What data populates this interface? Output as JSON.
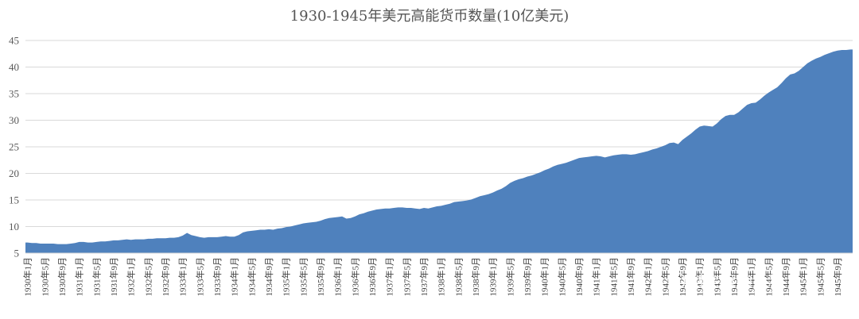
{
  "chart_data": {
    "type": "area",
    "title": "1930-1945年美元高能货币数量(10亿美元)",
    "xlabel": "",
    "ylabel": "",
    "ylim": [
      5,
      45
    ],
    "yticks": [
      5,
      10,
      15,
      20,
      25,
      30,
      35,
      40,
      45
    ],
    "grid": true,
    "legend": "none",
    "series_color": "#4f81bd",
    "tick_labels": [
      "1930年1月",
      "1930年5月",
      "1930年9月",
      "1931年1月",
      "1931年5月",
      "1931年9月",
      "1932年1月",
      "1932年5月",
      "1932年9月",
      "1933年1月",
      "1933年5月",
      "1933年9月",
      "1934年1月",
      "1934年5月",
      "1934年9月",
      "1935年1月",
      "1935年5月",
      "1935年9月",
      "1936年1月",
      "1936年5月",
      "1936年9月",
      "1937年1月",
      "1937年5月",
      "1937年9月",
      "1938年1月",
      "1938年5月",
      "1938年9月",
      "1939年1月",
      "1939年5月",
      "1939年9月",
      "1940年1月",
      "1940年5月",
      "1940年9月",
      "1941年1月",
      "1941年5月",
      "1941年9月",
      "1942年1月",
      "1942年5月",
      "1942年9月",
      "1943年1月",
      "1943年5月",
      "1943年9月",
      "1944年1月",
      "1944年5月",
      "1944年9月",
      "1945年1月",
      "1945年5月",
      "1945年9月"
    ],
    "values": [
      7.0,
      6.9,
      6.9,
      6.8,
      6.8,
      6.8,
      6.8,
      6.7,
      6.7,
      6.7,
      6.8,
      6.9,
      7.1,
      7.1,
      7.0,
      7.0,
      7.1,
      7.2,
      7.2,
      7.3,
      7.4,
      7.4,
      7.5,
      7.6,
      7.5,
      7.6,
      7.6,
      7.6,
      7.7,
      7.7,
      7.8,
      7.8,
      7.8,
      7.9,
      7.9,
      8.0,
      8.3,
      8.8,
      8.4,
      8.2,
      8.0,
      7.9,
      8.0,
      8.0,
      8.0,
      8.1,
      8.2,
      8.1,
      8.1,
      8.4,
      8.9,
      9.1,
      9.2,
      9.3,
      9.4,
      9.4,
      9.5,
      9.4,
      9.6,
      9.7,
      9.9,
      10.0,
      10.2,
      10.4,
      10.6,
      10.7,
      10.8,
      10.9,
      11.1,
      11.4,
      11.6,
      11.7,
      11.8,
      11.9,
      11.5,
      11.6,
      11.9,
      12.3,
      12.5,
      12.8,
      13.0,
      13.2,
      13.3,
      13.4,
      13.4,
      13.5,
      13.6,
      13.6,
      13.5,
      13.5,
      13.4,
      13.3,
      13.5,
      13.4,
      13.6,
      13.8,
      13.9,
      14.1,
      14.3,
      14.6,
      14.7,
      14.8,
      14.9,
      15.1,
      15.4,
      15.7,
      15.9,
      16.1,
      16.4,
      16.8,
      17.1,
      17.6,
      18.2,
      18.6,
      18.9,
      19.1,
      19.4,
      19.6,
      19.9,
      20.2,
      20.6,
      20.9,
      21.3,
      21.6,
      21.8,
      22.0,
      22.3,
      22.6,
      22.9,
      23.0,
      23.1,
      23.2,
      23.3,
      23.2,
      23.0,
      23.2,
      23.4,
      23.5,
      23.6,
      23.6,
      23.5,
      23.6,
      23.8,
      24.0,
      24.2,
      24.5,
      24.7,
      25.0,
      25.3,
      25.7,
      25.8,
      25.5,
      26.3,
      26.9,
      27.5,
      28.2,
      28.8,
      29.0,
      28.9,
      28.8,
      29.4,
      30.2,
      30.8,
      31.0,
      31.0,
      31.5,
      32.2,
      32.9,
      33.2,
      33.3,
      33.9,
      34.6,
      35.2,
      35.7,
      36.2,
      37.0,
      37.9,
      38.6,
      38.8,
      39.3,
      40.0,
      40.7,
      41.2,
      41.6,
      41.9,
      42.3,
      42.6,
      42.9,
      43.1,
      43.2,
      43.2,
      43.3
    ]
  },
  "watermark": "财主家的余粮"
}
